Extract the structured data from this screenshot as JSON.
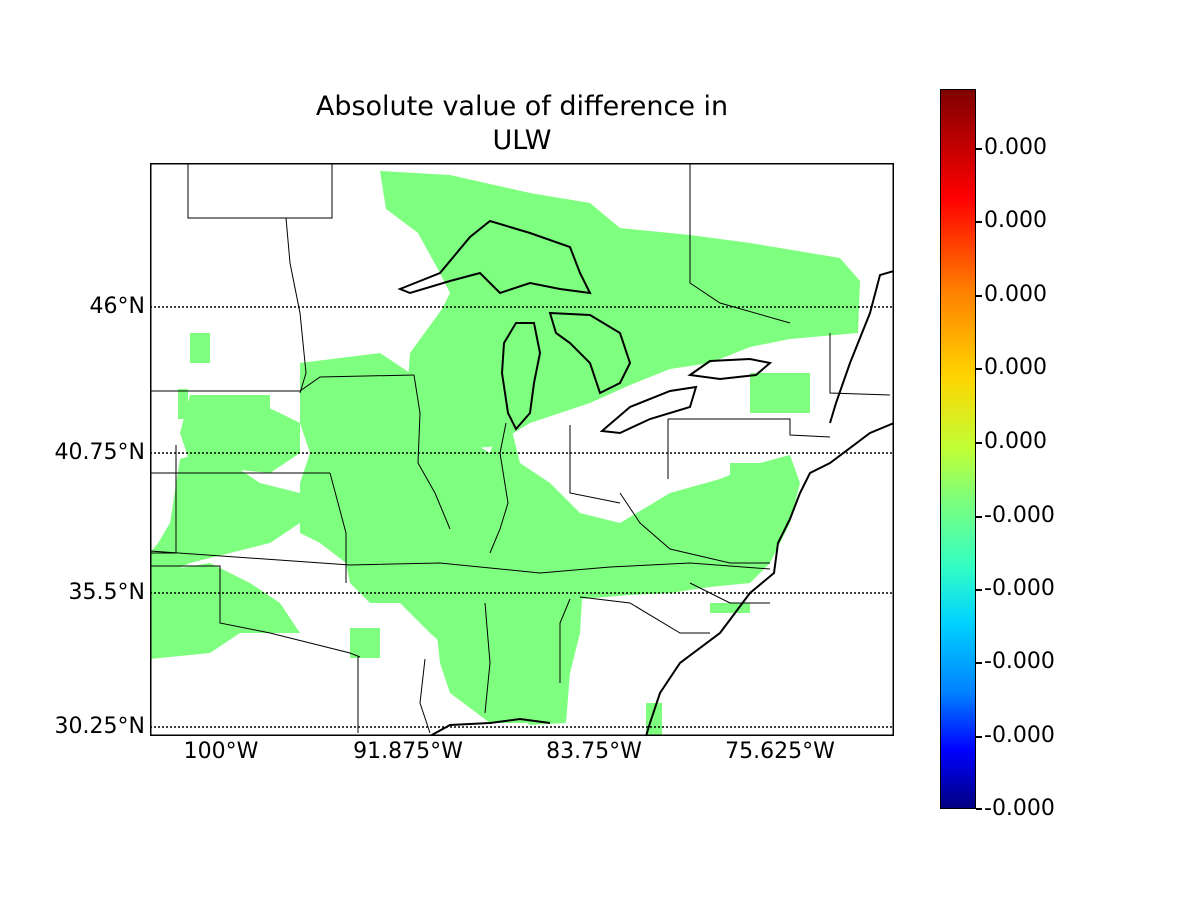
{
  "title_line1": "Absolute value of difference in",
  "title_line2": "ULW",
  "lat_labels": [
    "46°N",
    "40.75°N",
    "35.5°N",
    "30.25°N"
  ],
  "lon_labels": [
    "100°W",
    "91.875°W",
    "83.75°W",
    "75.625°W"
  ],
  "colorbar": {
    "labels": [
      "0.000",
      "0.000",
      "0.000",
      "0.000",
      "0.000",
      "-0.000",
      "-0.000",
      "-0.000",
      "-0.000",
      "-0.000"
    ],
    "colormap": "jet"
  },
  "colors": {
    "data_fill": "#7fff7f",
    "coastline": "#000000",
    "background": "#ffffff"
  }
}
